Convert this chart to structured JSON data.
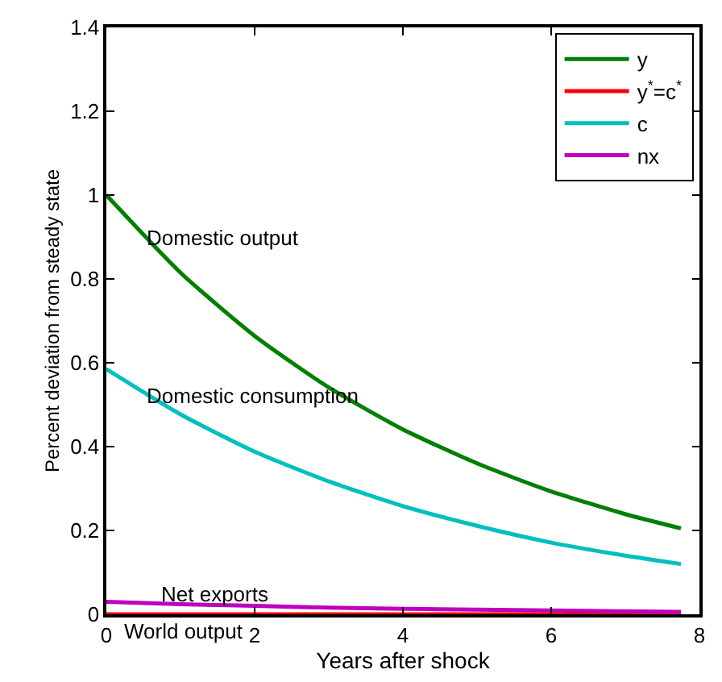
{
  "chart_data": {
    "type": "line",
    "xlabel": "Years after shock",
    "ylabel": "Percent deviation from steady state",
    "x": [
      0,
      1,
      2,
      3,
      4,
      5,
      6,
      7,
      7.75
    ],
    "series": [
      {
        "name": "y",
        "color": "#007f00",
        "values": [
          1.0,
          0.815,
          0.664,
          0.541,
          0.441,
          0.36,
          0.293,
          0.239,
          0.205
        ]
      },
      {
        "name": "y$^{*}$=c$^{*}$",
        "color": "#ff0000",
        "values": [
          0,
          0,
          0,
          0,
          0,
          0,
          0,
          0,
          0
        ]
      },
      {
        "name": "c",
        "color": "#00bfbf",
        "values": [
          0.585,
          0.477,
          0.388,
          0.317,
          0.258,
          0.211,
          0.171,
          0.14,
          0.12
        ]
      },
      {
        "name": "nx",
        "color": "#bf00bf",
        "values": [
          0.03,
          0.024,
          0.02,
          0.016,
          0.013,
          0.011,
          0.009,
          0.007,
          0.006
        ]
      }
    ],
    "annotations": [
      {
        "text": "Domestic output",
        "x": 0.5,
        "y": 0.9
      },
      {
        "text": "Domestic consumption",
        "x": 0.5,
        "y": 0.52
      },
      {
        "text": "Net exports",
        "x": 0.7,
        "y": 0.05
      },
      {
        "text": "World output",
        "x": 0.2,
        "y": 0
      }
    ],
    "xlim": [
      0,
      8
    ],
    "xticks": [
      0,
      2,
      4,
      6,
      8
    ],
    "ylim": [
      0,
      1.4
    ],
    "yticks": [
      0,
      0.2,
      0.4,
      0.6,
      0.8,
      1,
      1.2,
      1.4
    ],
    "legend": "top right",
    "line_style": "solid"
  }
}
